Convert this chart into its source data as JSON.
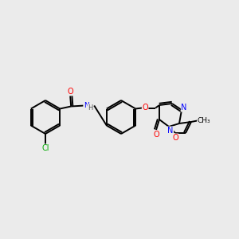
{
  "bg_color": "#ebebeb",
  "bond_color": "#000000",
  "atom_colors": {
    "O": "#ff0000",
    "N": "#0000ff",
    "Cl": "#00aa00",
    "H": "#555555",
    "C": "#000000"
  },
  "figsize": [
    3.0,
    3.0
  ],
  "dpi": 100,
  "lw": 1.4,
  "fontsize": 7.0
}
